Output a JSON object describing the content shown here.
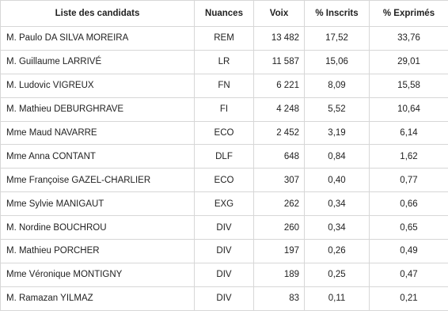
{
  "table": {
    "headers": {
      "name": "Liste des candidats",
      "nuance": "Nuances",
      "voix": "Voix",
      "inscrits": "% Inscrits",
      "exprimes": "% Exprimés"
    },
    "rows": [
      {
        "name": "M. Paulo DA SILVA MOREIRA",
        "nuance": "REM",
        "voix": "13 482",
        "inscrits": "17,52",
        "exprimes": "33,76"
      },
      {
        "name": "M. Guillaume LARRIVÉ",
        "nuance": "LR",
        "voix": "11 587",
        "inscrits": "15,06",
        "exprimes": "29,01"
      },
      {
        "name": "M. Ludovic VIGREUX",
        "nuance": "FN",
        "voix": "6 221",
        "inscrits": "8,09",
        "exprimes": "15,58"
      },
      {
        "name": "M. Mathieu DEBURGHRAVE",
        "nuance": "FI",
        "voix": "4 248",
        "inscrits": "5,52",
        "exprimes": "10,64"
      },
      {
        "name": "Mme Maud NAVARRE",
        "nuance": "ECO",
        "voix": "2 452",
        "inscrits": "3,19",
        "exprimes": "6,14"
      },
      {
        "name": "Mme Anna CONTANT",
        "nuance": "DLF",
        "voix": "648",
        "inscrits": "0,84",
        "exprimes": "1,62"
      },
      {
        "name": "Mme Françoise GAZEL-CHARLIER",
        "nuance": "ECO",
        "voix": "307",
        "inscrits": "0,40",
        "exprimes": "0,77"
      },
      {
        "name": "Mme Sylvie MANIGAUT",
        "nuance": "EXG",
        "voix": "262",
        "inscrits": "0,34",
        "exprimes": "0,66"
      },
      {
        "name": "M. Nordine BOUCHROU",
        "nuance": "DIV",
        "voix": "260",
        "inscrits": "0,34",
        "exprimes": "0,65"
      },
      {
        "name": "M. Mathieu PORCHER",
        "nuance": "DIV",
        "voix": "197",
        "inscrits": "0,26",
        "exprimes": "0,49"
      },
      {
        "name": "Mme Véronique MONTIGNY",
        "nuance": "DIV",
        "voix": "189",
        "inscrits": "0,25",
        "exprimes": "0,47"
      },
      {
        "name": "M. Ramazan YILMAZ",
        "nuance": "DIV",
        "voix": "83",
        "inscrits": "0,11",
        "exprimes": "0,21"
      }
    ]
  }
}
